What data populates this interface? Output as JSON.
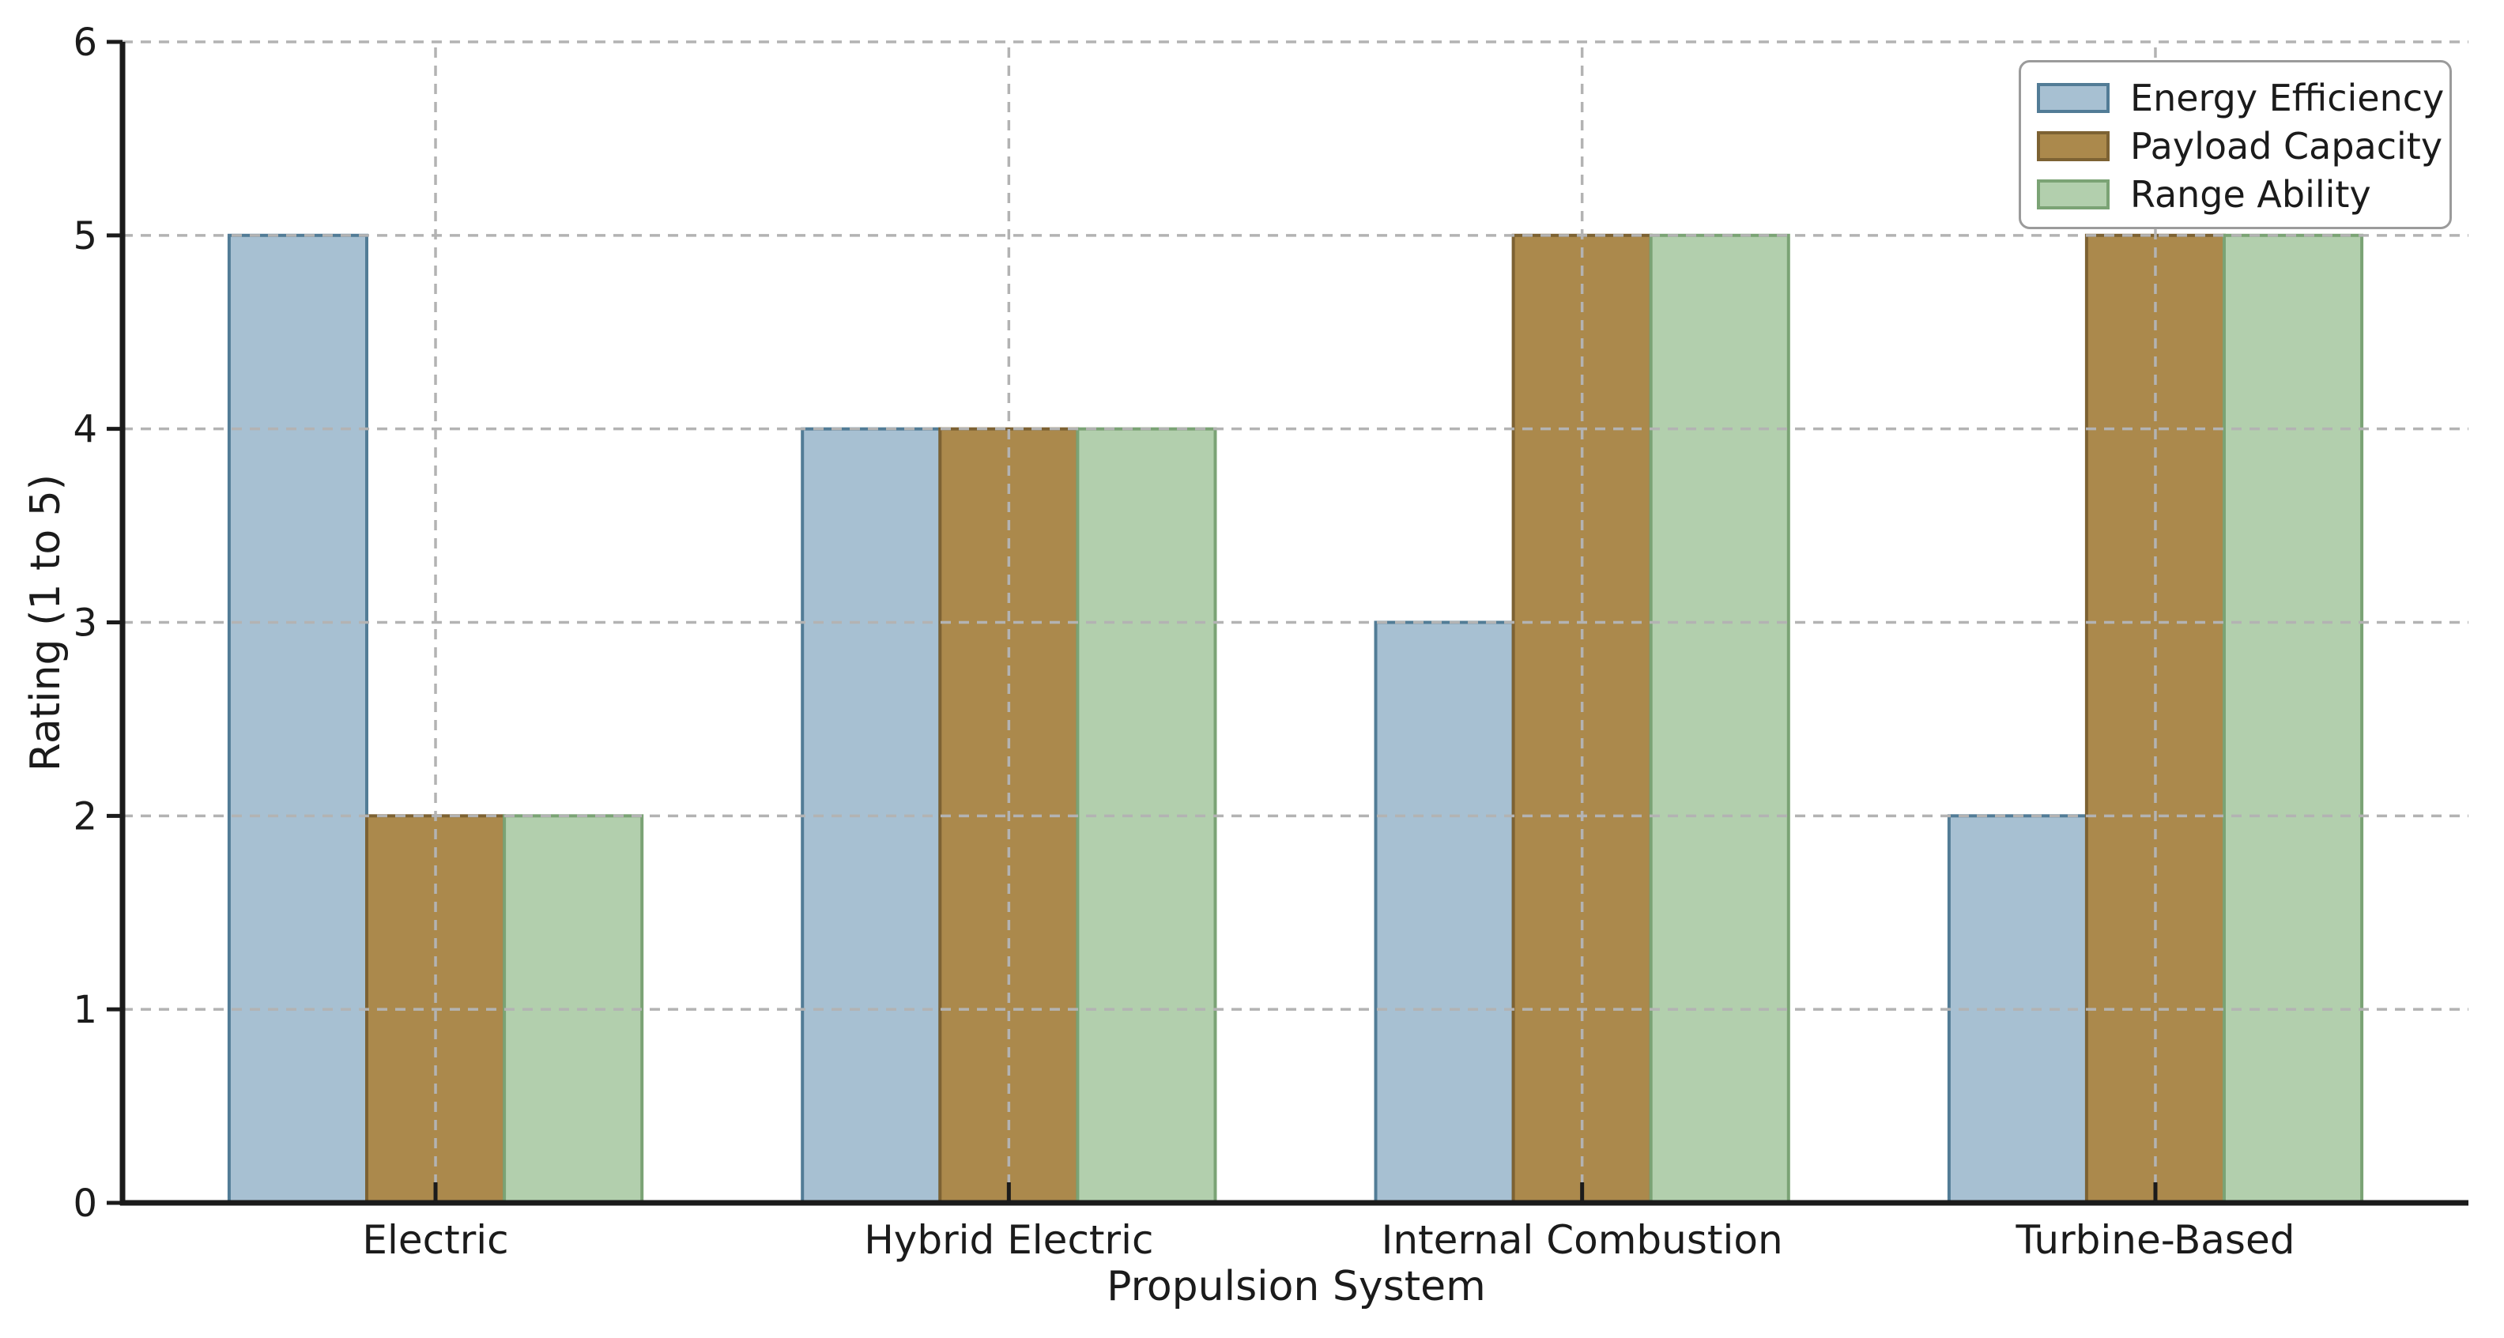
{
  "chart_data": {
    "type": "bar",
    "categories": [
      "Electric",
      "Hybrid Electric",
      "Internal Combustion",
      "Turbine-Based"
    ],
    "series": [
      {
        "name": "Energy Efficiency",
        "values": [
          5,
          4,
          3,
          2
        ],
        "fill": "#a7c0d2",
        "edge": "#527c96"
      },
      {
        "name": "Payload Capacity",
        "values": [
          2,
          4,
          5,
          5
        ],
        "fill": "#ab894c",
        "edge": "#7d6233"
      },
      {
        "name": "Range Ability",
        "values": [
          2,
          4,
          5,
          5
        ],
        "fill": "#b2cfad",
        "edge": "#7ba375"
      }
    ],
    "xlabel": "Propulsion System",
    "ylabel": "Rating (1 to 5)",
    "ylim": [
      0,
      6
    ],
    "yticks": [
      "0",
      "1",
      "2",
      "3",
      "4",
      "5",
      "6"
    ],
    "grid": true,
    "grid_style": "dashed",
    "legend_position": "upper right",
    "colors": {
      "background": "#ffffff",
      "grid": "#b3b3b3",
      "axis": "#1b1b1b",
      "text": "#1b1b1b",
      "legend_border": "#9b9b9b"
    }
  }
}
